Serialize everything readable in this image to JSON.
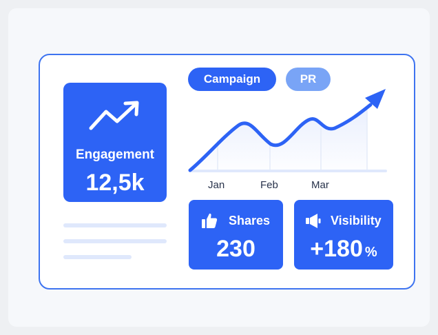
{
  "colors": {
    "accent": "#2d63f5",
    "accent_light": "#79a4f6",
    "frame": "#3d73f0"
  },
  "engagement": {
    "label": "Engagement",
    "value": "12,5k",
    "icon": "trend-up-icon"
  },
  "tabs": [
    {
      "label": "Campaign",
      "active": true
    },
    {
      "label": "PR",
      "active": false
    }
  ],
  "chart_data": {
    "type": "line",
    "x": [
      "Jan",
      "Feb",
      "Mar"
    ],
    "trend": "up",
    "grid": true
  },
  "stats": {
    "shares": {
      "label": "Shares",
      "value": "230",
      "icon": "thumbs-up-icon"
    },
    "visibility": {
      "label": "Visibility",
      "value": "+180",
      "unit": "%",
      "icon": "megaphone-icon"
    }
  }
}
